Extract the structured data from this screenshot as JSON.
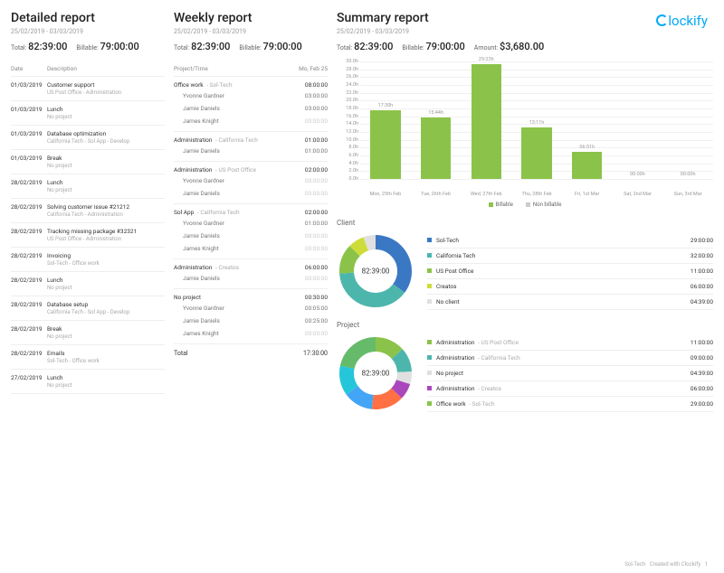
{
  "logo_text": "lockify",
  "date_range": "25/02/2019 - 03/03/2019",
  "total_label": "Total:",
  "billable_label": "Billable:",
  "amount_label": "Amount:",
  "total_value": "82:39:00",
  "billable_value": "79:00:00",
  "amount_value": "$3,680.00",
  "detailed": {
    "title": "Detailed report",
    "col_date": "Date",
    "col_desc": "Description",
    "rows": [
      {
        "date": "01/03/2019",
        "title": "Customer support",
        "sub": "US Post Office - Administration"
      },
      {
        "date": "01/03/2019",
        "title": "Lunch",
        "sub": "No project"
      },
      {
        "date": "01/03/2019",
        "title": "Database optimization",
        "sub": "California Tech - Sol App - Develop"
      },
      {
        "date": "01/03/2019",
        "title": "Break",
        "sub": "No project"
      },
      {
        "date": "28/02/2019",
        "title": "Lunch",
        "sub": "No project"
      },
      {
        "date": "28/02/2019",
        "title": "Solving customer issue #21212",
        "sub": "California Tech - Administration"
      },
      {
        "date": "28/02/2019",
        "title": "Tracking missing package #32321",
        "sub": "US Post Office - Administration"
      },
      {
        "date": "28/02/2019",
        "title": "Invoicing",
        "sub": "Sol-Tech - Office work"
      },
      {
        "date": "28/02/2019",
        "title": "Lunch",
        "sub": "No project"
      },
      {
        "date": "28/02/2019",
        "title": "Database setup",
        "sub": "California Tech - Sol App - Develop"
      },
      {
        "date": "28/02/2019",
        "title": "Break",
        "sub": "No project"
      },
      {
        "date": "28/02/2019",
        "title": "Emails",
        "sub": "Sol-Tech - Office work"
      },
      {
        "date": "27/02/2019",
        "title": "Lunch",
        "sub": "No project"
      }
    ]
  },
  "weekly": {
    "title": "Weekly report",
    "col_project": "Project/Time",
    "col_day": "Mo, Feb 25",
    "total_label": "Total",
    "total_value": "17:30:00",
    "groups": [
      {
        "name": "Office work",
        "sub": "Sol-Tech",
        "time": "08:00:00",
        "people": [
          {
            "name": "Yvonne Gardner",
            "time": "03:00:00",
            "zero": false
          },
          {
            "name": "Jamie Daniels",
            "time": "03:00:00",
            "zero": false
          },
          {
            "name": "James Knight",
            "time": "00:00:00",
            "zero": true
          }
        ]
      },
      {
        "name": "Administration",
        "sub": "California Tech",
        "time": "01:00:00",
        "people": [
          {
            "name": "Jamie Daniels",
            "time": "01:00:00",
            "zero": false
          }
        ]
      },
      {
        "name": "Administration",
        "sub": "US Post Office",
        "time": "02:00:00",
        "people": [
          {
            "name": "Yvonne Gardner",
            "time": "00:00:00",
            "zero": true
          },
          {
            "name": "Jamie Daniels",
            "time": "00:00:00",
            "zero": true
          }
        ]
      },
      {
        "name": "Sol App",
        "sub": "California Tech",
        "time": "02:00:00",
        "people": [
          {
            "name": "Yvonne Gardner",
            "time": "01:00:00",
            "zero": false
          },
          {
            "name": "Jamie Daniels",
            "time": "00:00:00",
            "zero": true
          },
          {
            "name": "James Knight",
            "time": "00:00:00",
            "zero": true
          }
        ]
      },
      {
        "name": "Administration",
        "sub": "Creatos",
        "time": "06:00:00",
        "people": [
          {
            "name": "Jamie Daniels",
            "time": "00:00:00",
            "zero": true
          }
        ]
      },
      {
        "name": "No project",
        "sub": "",
        "time": "00:30:00",
        "people": [
          {
            "name": "Yvonne Gardner",
            "time": "00:05:00",
            "zero": false
          },
          {
            "name": "Jamie Daniels",
            "time": "00:25:00",
            "zero": false
          },
          {
            "name": "James Knight",
            "time": "00:00:00",
            "zero": true
          }
        ]
      }
    ]
  },
  "summary": {
    "title": "Summary report",
    "chart": {
      "type": "bar",
      "ymax": 30,
      "ytick_step": 2,
      "bar_color": "#8bc34a",
      "grid_color": "#f0f0f0",
      "label_color": "#999999",
      "bars": [
        {
          "label": "Mon, 25th Feb",
          "value": 17.5,
          "text": "17:30h"
        },
        {
          "label": "Tue, 26th Feb",
          "value": 15.7,
          "text": "15:44h"
        },
        {
          "label": "Wed, 27th Feb",
          "value": 29.4,
          "text": "29:23h"
        },
        {
          "label": "Thu, 28th Feb",
          "value": 13.2,
          "text": "13:11h"
        },
        {
          "label": "Fri, 1st Mar",
          "value": 6.9,
          "text": "06:51h"
        },
        {
          "label": "Sat, 2nd Mar",
          "value": 0,
          "text": "00:00h"
        },
        {
          "label": "Sun, 3rd Mar",
          "value": 0,
          "text": "00:00h"
        }
      ],
      "legend": [
        {
          "label": "Billable",
          "color": "#8bc34a"
        },
        {
          "label": "Non billable",
          "color": "#cccccc"
        }
      ]
    },
    "client": {
      "title": "Client",
      "center": "82:39:00",
      "items": [
        {
          "name": "Sol-Tech",
          "time": "29:00:00",
          "color": "#3b78c4",
          "value": 29
        },
        {
          "name": "California Tech",
          "time": "32:00:00",
          "color": "#4db6ac",
          "value": 32
        },
        {
          "name": "US Post Office",
          "time": "11:00:00",
          "color": "#8bc34a",
          "value": 11
        },
        {
          "name": "Creatos",
          "time": "06:00:00",
          "color": "#cddc39",
          "value": 6
        },
        {
          "name": "No client",
          "time": "04:39:00",
          "color": "#e0e0e0",
          "value": 4.65
        }
      ]
    },
    "project": {
      "title": "Project",
      "center": "82:39:00",
      "items": [
        {
          "name": "Administration",
          "sub": "US Post Office",
          "time": "11:00:00",
          "color": "#8bc34a",
          "value": 11
        },
        {
          "name": "Administration",
          "sub": "California Tech",
          "time": "09:00:00",
          "color": "#4db6ac",
          "value": 9
        },
        {
          "name": "No project",
          "time": "04:39:00",
          "color": "#e0e0e0",
          "value": 4.65
        },
        {
          "name": "Administration",
          "sub": "Creatos",
          "time": "06:00:00",
          "color": "#ab47bc",
          "value": 6
        },
        {
          "name": "Office work",
          "sub": "Sol-Tech",
          "time": "29:00:00",
          "color": "#8bc34a",
          "value": 29
        }
      ],
      "donut_colors": [
        "#8bc34a",
        "#4db6ac",
        "#e0e0e0",
        "#ab47bc",
        "#ff7043",
        "#42a5f5",
        "#26c6da",
        "#66bb6a"
      ],
      "donut_values": [
        11,
        9,
        4.65,
        6,
        12,
        11,
        11,
        18
      ]
    }
  },
  "footer": {
    "workspace": "Sol-Tech",
    "credit": "Created with Clockify",
    "page": "1"
  }
}
